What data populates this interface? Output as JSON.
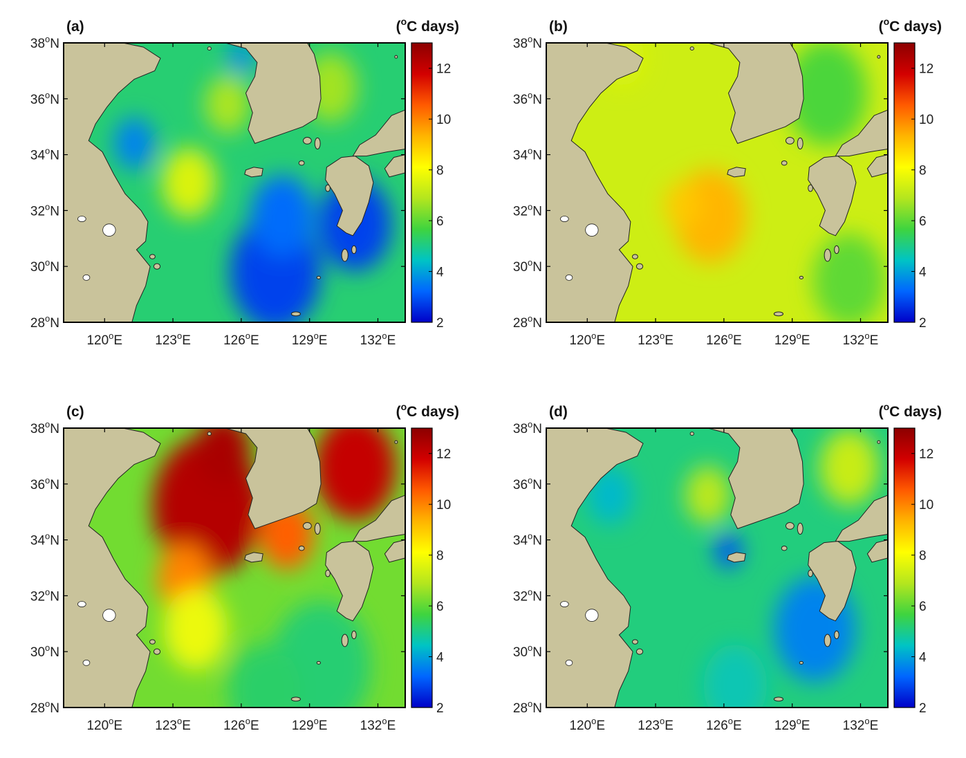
{
  "figure": {
    "unit_label": "(°C days)",
    "unit_parts": {
      "open": "(",
      "deg": "o",
      "rest": "C days)"
    }
  },
  "colorbar": {
    "min": 2,
    "max": 13,
    "ticks": [
      2,
      4,
      6,
      8,
      10,
      12
    ],
    "tick_labels": [
      "2",
      "4",
      "6",
      "8",
      "10",
      "12"
    ],
    "colormap": [
      "#0000c8",
      "#0066ff",
      "#00c4c4",
      "#3fd43f",
      "#b4e61e",
      "#ffff00",
      "#ffb400",
      "#ff5a00",
      "#d20000",
      "#8c0000"
    ]
  },
  "axes": {
    "lon_range": [
      118.2,
      133.2
    ],
    "lat_range": [
      28,
      38
    ],
    "lon_ticks": [
      120,
      123,
      126,
      129,
      132
    ],
    "lat_ticks": [
      28,
      30,
      32,
      34,
      36,
      38
    ],
    "lon_tick_labels": [
      {
        "deg": "120",
        "sup": "o",
        "hemi": "E"
      },
      {
        "deg": "123",
        "sup": "o",
        "hemi": "E"
      },
      {
        "deg": "126",
        "sup": "o",
        "hemi": "E"
      },
      {
        "deg": "129",
        "sup": "o",
        "hemi": "E"
      },
      {
        "deg": "132",
        "sup": "o",
        "hemi": "E"
      }
    ],
    "lat_tick_labels": [
      {
        "deg": "28",
        "sup": "o",
        "hemi": "N"
      },
      {
        "deg": "30",
        "sup": "o",
        "hemi": "N"
      },
      {
        "deg": "32",
        "sup": "o",
        "hemi": "N"
      },
      {
        "deg": "34",
        "sup": "o",
        "hemi": "N"
      },
      {
        "deg": "36",
        "sup": "o",
        "hemi": "N"
      },
      {
        "deg": "38",
        "sup": "o",
        "hemi": "N"
      }
    ]
  },
  "colors": {
    "land": "#c9c39b",
    "coast": "#222222",
    "frame": "#000000"
  },
  "panels": [
    {
      "label": "(a)",
      "base_value": 5.2,
      "features": [
        {
          "lon": 123.7,
          "lat": 33.0,
          "v": 7.5,
          "r": 1.2
        },
        {
          "lon": 125.4,
          "lat": 35.8,
          "v": 6.8,
          "r": 1.0
        },
        {
          "lon": 129.9,
          "lat": 36.4,
          "v": 6.7,
          "r": 1.2
        },
        {
          "lon": 127.5,
          "lat": 29.8,
          "v": 2.8,
          "r": 2.0
        },
        {
          "lon": 131.0,
          "lat": 31.5,
          "v": 2.8,
          "r": 1.6
        },
        {
          "lon": 127.8,
          "lat": 31.8,
          "v": 3.3,
          "r": 1.4
        },
        {
          "lon": 121.3,
          "lat": 34.4,
          "v": 3.6,
          "r": 0.9
        },
        {
          "lon": 126.0,
          "lat": 37.5,
          "v": 3.8,
          "r": 0.6
        }
      ]
    },
    {
      "label": "(b)",
      "base_value": 7.3,
      "features": [
        {
          "lon": 125.4,
          "lat": 31.8,
          "v": 9.3,
          "r": 1.6
        },
        {
          "lon": 124.2,
          "lat": 32.2,
          "v": 9.0,
          "r": 0.8
        },
        {
          "lon": 130.5,
          "lat": 36.2,
          "v": 5.8,
          "r": 1.8
        },
        {
          "lon": 131.5,
          "lat": 29.5,
          "v": 6.0,
          "r": 1.6
        },
        {
          "lon": 121.5,
          "lat": 37.5,
          "v": 7.5,
          "r": 1.0
        }
      ]
    },
    {
      "label": "(c)",
      "base_value": 6.2,
      "features": [
        {
          "lon": 124.5,
          "lat": 35.2,
          "v": 12.3,
          "r": 2.4
        },
        {
          "lon": 125.2,
          "lat": 37.2,
          "v": 12.5,
          "r": 1.2
        },
        {
          "lon": 131.0,
          "lat": 36.6,
          "v": 12.0,
          "r": 1.8
        },
        {
          "lon": 128.0,
          "lat": 34.2,
          "v": 10.5,
          "r": 1.2
        },
        {
          "lon": 123.5,
          "lat": 32.6,
          "v": 10.0,
          "r": 1.2
        },
        {
          "lon": 124.0,
          "lat": 30.8,
          "v": 7.8,
          "r": 1.4
        },
        {
          "lon": 129.5,
          "lat": 29.5,
          "v": 5.2,
          "r": 2.2
        },
        {
          "lon": 127.0,
          "lat": 28.6,
          "v": 5.3,
          "r": 1.6
        }
      ]
    },
    {
      "label": "(d)",
      "base_value": 5.1,
      "features": [
        {
          "lon": 125.3,
          "lat": 35.6,
          "v": 7.0,
          "r": 1.0
        },
        {
          "lon": 131.5,
          "lat": 36.6,
          "v": 7.2,
          "r": 1.3
        },
        {
          "lon": 126.2,
          "lat": 33.6,
          "v": 3.0,
          "r": 0.6
        },
        {
          "lon": 130.0,
          "lat": 30.8,
          "v": 3.6,
          "r": 1.8
        },
        {
          "lon": 121.0,
          "lat": 35.6,
          "v": 4.3,
          "r": 1.0
        },
        {
          "lon": 126.5,
          "lat": 28.8,
          "v": 4.6,
          "r": 1.4
        }
      ]
    }
  ]
}
